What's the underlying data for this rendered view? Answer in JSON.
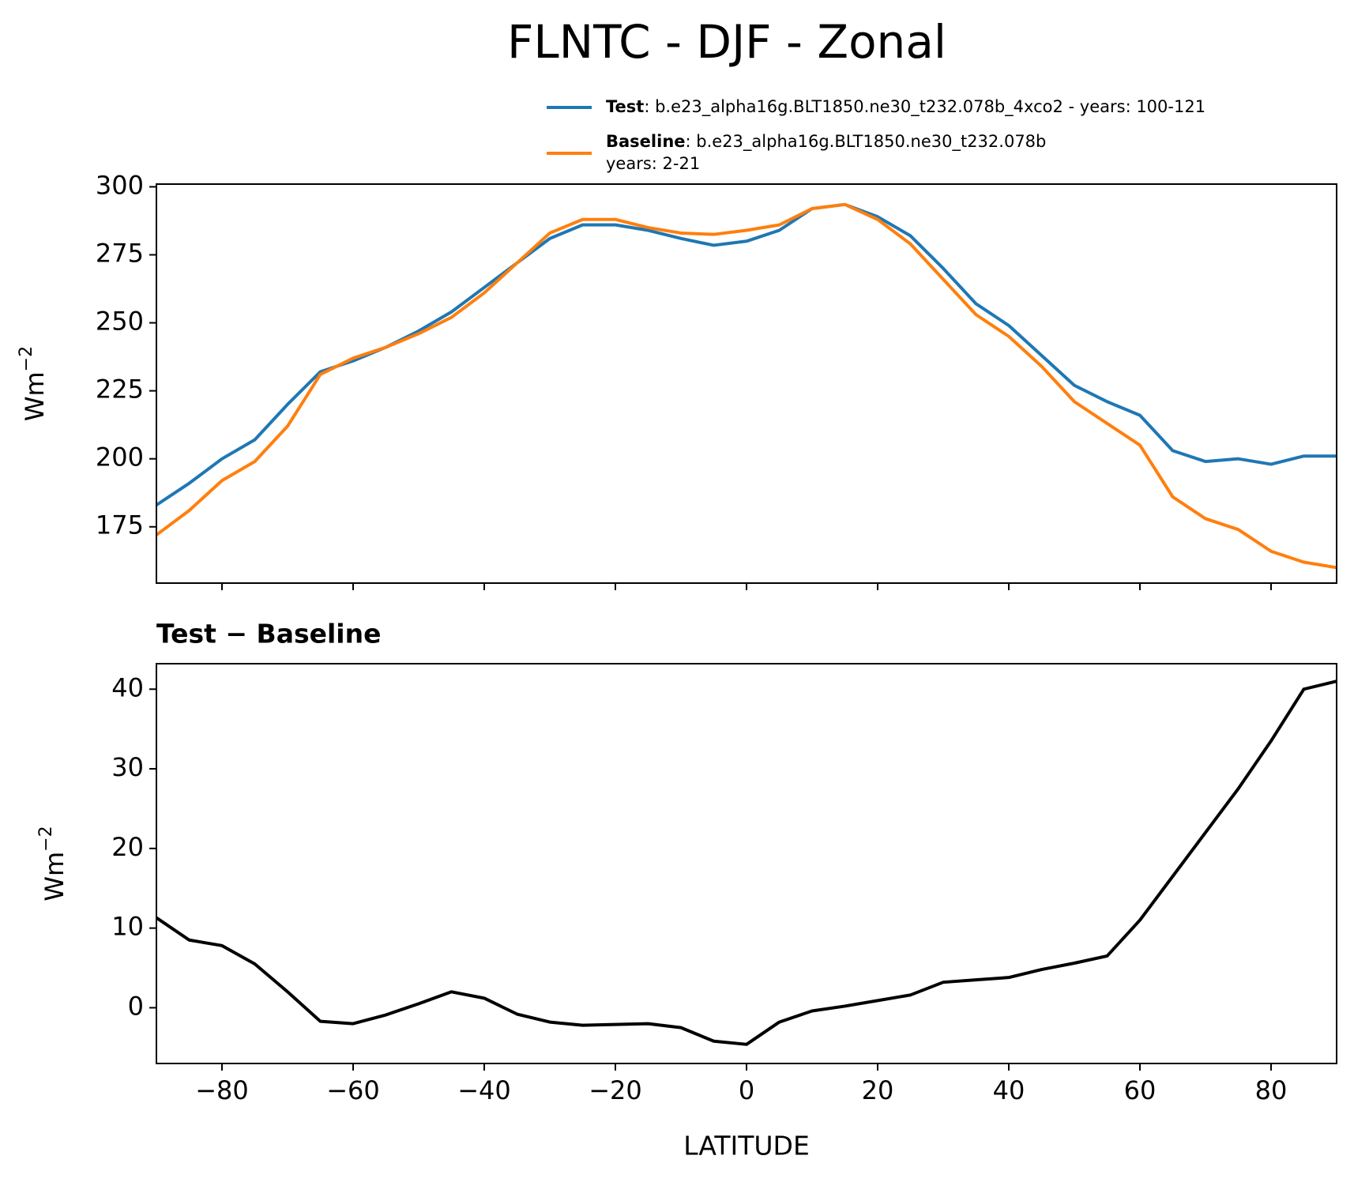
{
  "chart_data": [
    {
      "type": "line",
      "title": "FLNTC - DJF - Zonal",
      "ylabel_base": "Wm",
      "ylabel_exponent": "−2",
      "x": [
        -90,
        -85,
        -80,
        -75,
        -70,
        -65,
        -60,
        -55,
        -50,
        -45,
        -40,
        -35,
        -30,
        -25,
        -20,
        -15,
        -10,
        -5,
        0,
        5,
        10,
        15,
        20,
        25,
        30,
        35,
        40,
        45,
        50,
        55,
        60,
        65,
        70,
        75,
        80,
        85,
        90
      ],
      "series": [
        {
          "name": "Test",
          "description": [
            ": b.e23_alpha16g.BLT1850.ne30_t232.078b_4xco2 - years: 100-121"
          ],
          "color": "#1f77b4",
          "values": [
            183,
            191,
            200,
            207,
            220,
            232,
            236,
            241,
            247,
            254,
            263,
            272,
            281,
            286,
            286,
            284,
            281,
            278.5,
            280,
            284,
            292,
            293.5,
            289,
            282,
            270,
            257,
            249,
            238,
            227,
            221,
            216,
            203,
            199,
            200,
            198,
            201,
            201
          ]
        },
        {
          "name": "Baseline",
          "description": [
            ": b.e23_alpha16g.BLT1850.ne30_t232.078b",
            "years: 2-21"
          ],
          "color": "#ff7f0e",
          "values": [
            172,
            181,
            192,
            199,
            212,
            231,
            237,
            241,
            246,
            252,
            261,
            272,
            283,
            288,
            288,
            285,
            283,
            282.5,
            284,
            286,
            292,
            293.5,
            288,
            279,
            266,
            253,
            245,
            234,
            221,
            213,
            205,
            186,
            178,
            174,
            166,
            162,
            160
          ]
        }
      ],
      "xlim": [
        -90,
        90
      ],
      "xticks": [
        -80,
        -60,
        -40,
        -20,
        0,
        20,
        40,
        60,
        80
      ],
      "show_xtick_labels": false,
      "ylim": [
        154.3,
        301
      ],
      "yticks": [
        175,
        200,
        225,
        250,
        275,
        300
      ]
    },
    {
      "type": "line",
      "subtitle": "Test − Baseline",
      "xlabel": "LATITUDE",
      "ylabel_base": "Wm",
      "ylabel_exponent": "−2",
      "x": [
        -90,
        -85,
        -80,
        -75,
        -70,
        -65,
        -60,
        -55,
        -50,
        -45,
        -40,
        -35,
        -30,
        -25,
        -20,
        -15,
        -10,
        -5,
        0,
        5,
        10,
        15,
        20,
        25,
        30,
        35,
        40,
        45,
        50,
        55,
        60,
        65,
        70,
        75,
        80,
        85,
        90
      ],
      "series": [
        {
          "color": "#000000",
          "values": [
            11.3,
            8.5,
            7.8,
            5.5,
            2,
            -1.7,
            -2,
            -0.9,
            0.5,
            2,
            1.2,
            -0.8,
            -1.8,
            -2.2,
            -2.1,
            -2,
            -2.5,
            -4.2,
            -4.6,
            -1.8,
            -0.4,
            0.2,
            0.9,
            1.6,
            3.2,
            3.5,
            3.8,
            4.8,
            5.6,
            6.5,
            11,
            16.5,
            22,
            27.5,
            33.5,
            40,
            41
          ]
        }
      ],
      "xlim": [
        -90,
        90
      ],
      "xticks": [
        {
          "value": -80,
          "label": "−80"
        },
        {
          "value": -60,
          "label": "−60"
        },
        {
          "value": -40,
          "label": "−40"
        },
        {
          "value": -20,
          "label": "−20"
        },
        0,
        20,
        40,
        60,
        80
      ],
      "show_xtick_labels": true,
      "ylim": [
        -7.0,
        43.2
      ],
      "yticks": [
        0,
        10,
        20,
        30,
        40
      ]
    }
  ]
}
